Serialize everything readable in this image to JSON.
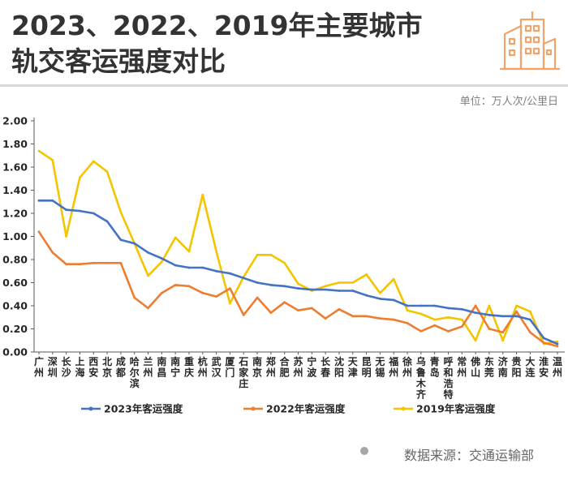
{
  "title": {
    "line1": "2023、2022、2019年主要城市",
    "line2": "轨交客运强度对比"
  },
  "unit_label": "单位：万人次/公里日",
  "source": "数据来源：交通运输部",
  "icon": "city-buildings-icon",
  "colors": {
    "series_2023": "#4472c4",
    "series_2022": "#ed7d31",
    "series_2019": "#f5c400",
    "axis": "#595959",
    "tick_text": "#262626",
    "icon": "#f0a36b"
  },
  "chart_data": {
    "type": "line",
    "categories": [
      "广州",
      "深圳",
      "长沙",
      "上海",
      "西安",
      "北京",
      "成都",
      "哈尔滨",
      "兰州",
      "南昌",
      "南宁",
      "重庆",
      "杭州",
      "武汉",
      "厦门",
      "石家庄",
      "南京",
      "郑州",
      "合肥",
      "苏州",
      "宁波",
      "长春",
      "沈阳",
      "天津",
      "昆明",
      "无锡",
      "福州",
      "徐州",
      "乌鲁木齐",
      "青岛",
      "呼和浩特",
      "常州",
      "佛山",
      "东莞",
      "济南",
      "贵阳",
      "大连",
      "淮安",
      "温州"
    ],
    "series": [
      {
        "name": "2023年客运强度",
        "values": [
          1.31,
          1.31,
          1.23,
          1.22,
          1.2,
          1.13,
          0.97,
          0.94,
          0.86,
          0.81,
          0.75,
          0.73,
          0.73,
          0.7,
          0.68,
          0.64,
          0.6,
          0.58,
          0.57,
          0.55,
          0.54,
          0.54,
          0.53,
          0.53,
          0.49,
          0.46,
          0.45,
          0.4,
          0.4,
          0.4,
          0.38,
          0.37,
          0.34,
          0.32,
          0.31,
          0.31,
          0.28,
          0.12,
          0.07
        ]
      },
      {
        "name": "2022年客运强度",
        "values": [
          1.04,
          0.86,
          0.76,
          0.76,
          0.77,
          0.77,
          0.77,
          0.47,
          0.38,
          0.51,
          0.58,
          0.57,
          0.51,
          0.48,
          0.55,
          0.32,
          0.47,
          0.34,
          0.43,
          0.36,
          0.38,
          0.29,
          0.37,
          0.31,
          0.31,
          0.29,
          0.28,
          0.25,
          0.18,
          0.23,
          0.18,
          0.22,
          0.4,
          0.2,
          0.17,
          0.35,
          0.17,
          0.08,
          0.05
        ]
      },
      {
        "name": "2019年客运强度",
        "values": [
          1.74,
          1.66,
          1.0,
          1.51,
          1.65,
          1.56,
          1.21,
          0.94,
          0.66,
          0.78,
          0.99,
          0.87,
          1.36,
          0.87,
          0.42,
          0.65,
          0.84,
          0.84,
          0.77,
          0.59,
          0.53,
          0.57,
          0.6,
          0.6,
          0.67,
          0.51,
          0.63,
          0.36,
          0.33,
          0.28,
          0.3,
          0.28,
          0.1,
          0.4,
          0.1,
          0.4,
          0.35,
          0.07,
          0.09
        ]
      }
    ],
    "ylim": [
      0,
      2.0
    ],
    "yticks": [
      "0.00",
      "0.20",
      "0.40",
      "0.60",
      "0.80",
      "1.00",
      "1.20",
      "1.40",
      "1.60",
      "1.80",
      "2.00"
    ],
    "legend_position": "bottom",
    "grid": false
  }
}
